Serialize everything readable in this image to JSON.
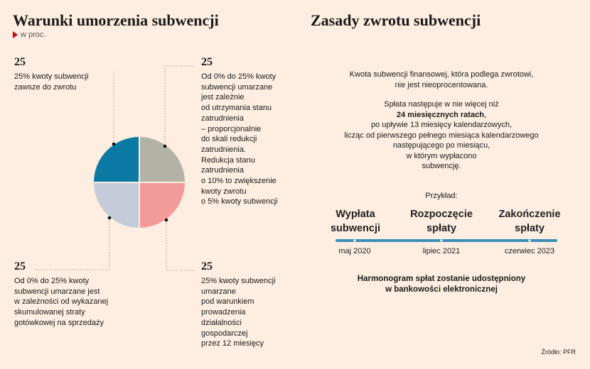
{
  "left_title": "Warunki umorzenia subwencji",
  "subtitle": "w proc.",
  "right_title": "Zasady zwrotu subwencji",
  "chart_data": {
    "type": "pie",
    "categories": [
      "25% kwoty subwencji zawsze do zwrotu",
      "Od 0% do 25% kwoty subwencji umarzane jest zależnie od utrzymania stanu zatrudnienia",
      "25% kwoty subwencji umarzane pod warunkiem prowadzenia działalności gospodarczej przez 12 miesięcy",
      "Od 0% do 25% kwoty subwencji umarzane jest w zależności od wykazanej skumulowanej straty gotówkowej na sprzedaży"
    ],
    "values": [
      25,
      25,
      25,
      25
    ],
    "colors": [
      "#0a7aa5",
      "#b3b3a5",
      "#f39b9b",
      "#c5cbd9"
    ],
    "quadrants": {
      "tl": {
        "value": "25",
        "text": "25% kwoty subwencji\nzawsze do zwrotu"
      },
      "tr": {
        "value": "25",
        "text": "Od 0% do 25% kwoty\nsubwencji umarzane\njest zależnie\nod utrzymania stanu\nzatrudnienia\n– proporcjonalnie\ndo skali redukcji\nzatrudnienia.\nRedukcja stanu\nzatrudnienia\no 10% to zwiększenie\nkwoty zwrotu\no 5% kwoty subwencji"
      },
      "bl": {
        "value": "25",
        "text": "Od 0% do 25% kwoty\nsubwencji umarzane jest\nw zależności od wykazanej\nskumulowanej straty\ngotówkowej na sprzedaży"
      },
      "br": {
        "value": "25",
        "text": "25% kwoty subwencji\numarzane\npod warunkiem\nprowadzenia\ndziałalności\ngospodarczej\nprzez 12 miesięcy"
      }
    }
  },
  "rules": {
    "p1": "Kwota subwencji finansowej, która podlega zwrotowi,\nnie jest nieoprocentowana.",
    "p2_line1": "Spłata następuje w nie więcej niż",
    "p2_bold": "24 miesięcznych ratach",
    "p2_rest": "po upływie 13 miesięcy kalendarzowych,\nlicząc od pierwszego pełnego miesiąca kalendarzowego\nnastępującego po miesiącu,\nw którym wypłacono\nsubwencję.",
    "example_label": "Przykład:",
    "timeline": [
      {
        "event": "Wypłata\nsubwencji",
        "date": "maj 2020"
      },
      {
        "event": "Rozpoczęcie\nspłaty",
        "date": "lipiec 2021"
      },
      {
        "event": "Zakończenie\nspłaty",
        "date": "czerwiec 2023"
      }
    ],
    "timeline_color": "#3a8fb7",
    "footer": "Harmonogram spłat zostanie udostępniony\nw bankowości elektronicznej"
  },
  "source": "Źródło: PFR"
}
